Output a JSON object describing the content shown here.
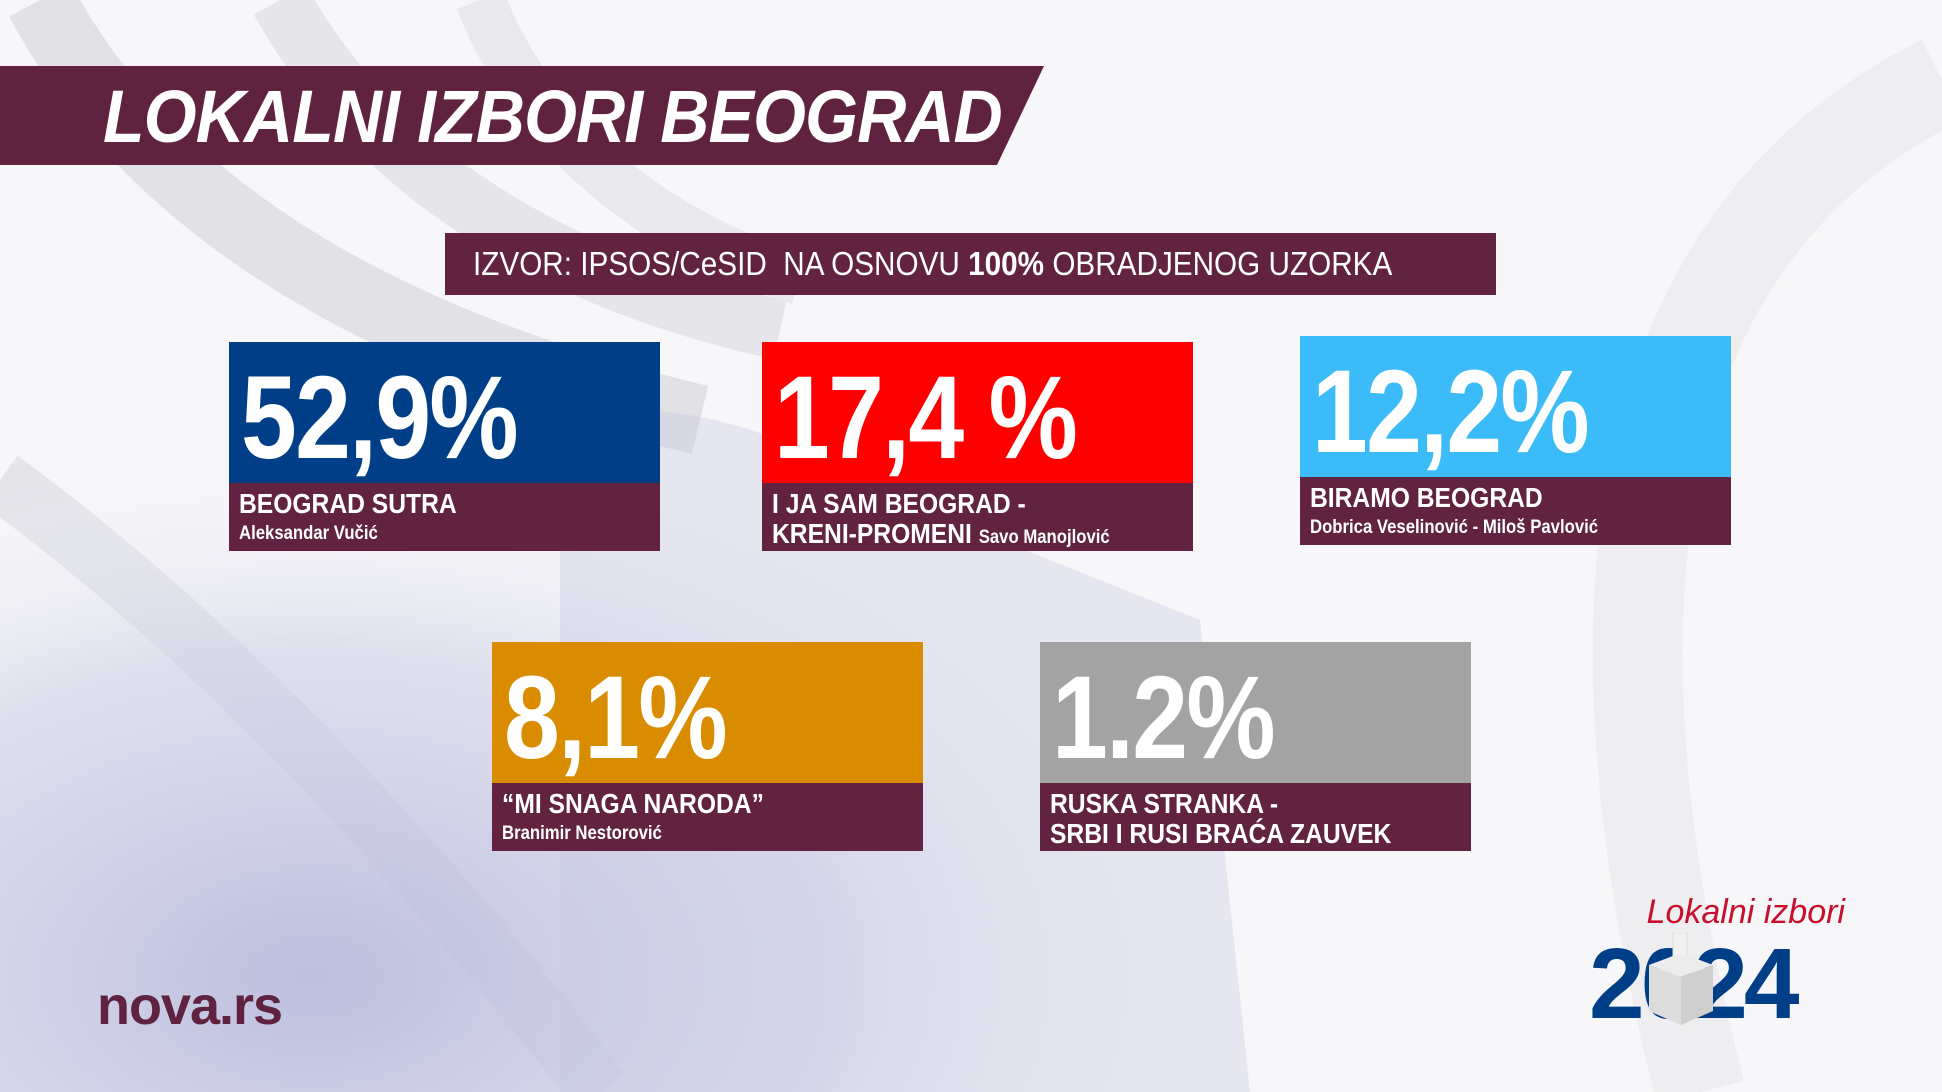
{
  "header": {
    "title": "LOKALNI IZBORI BEOGRAD"
  },
  "source": {
    "prefix": "IZVOR: IPSOS/CeSID  NA OSNOVU ",
    "percent": "100%",
    "suffix": " OBRADJENOG UZORKA"
  },
  "results": [
    {
      "percent": "52,9%",
      "party": "BEOGRAD SUTRA",
      "leader": "Aleksandar Vučić",
      "color": "#003f87"
    },
    {
      "percent": "17,4 %",
      "party": "I JA SAM BEOGRAD -",
      "party_line2": "KRENI-PROMENI",
      "leader": "Savo Manojlović",
      "color": "#ff0000"
    },
    {
      "percent": "12,2%",
      "party": "BIRAMO BEOGRAD",
      "leader": "Dobrica Veselinović - Miloš Pavlović",
      "color": "#3bbcf8"
    },
    {
      "percent": "8,1%",
      "party": "“MI SNAGA NARODA”",
      "leader": "Branimir Nestorović",
      "color": "#d98c00"
    },
    {
      "percent": "1.2%",
      "party": "RUSKA STRANKA -",
      "party_line2": "SRBI I RUSI BRAĆA ZAUVEK",
      "color": "#a3a3a3"
    }
  ],
  "branding": {
    "site": "nova.rs",
    "event_label": "Lokalni izbori",
    "year": "2024"
  }
}
